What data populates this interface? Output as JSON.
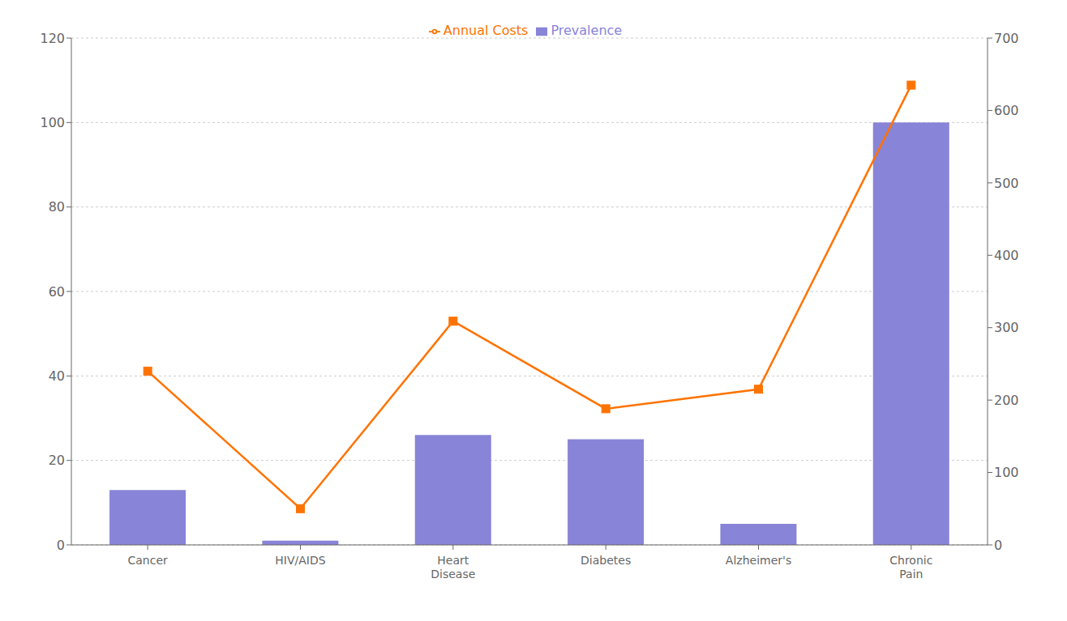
{
  "chart_data": {
    "type": "bar",
    "categories": [
      "Cancer",
      "HIV/AIDS",
      "Heart\nDisease",
      "Diabetes",
      "Alzheimer's",
      "Chronic\nPain"
    ],
    "series": [
      {
        "name": "Prevalence",
        "type": "bar",
        "color": "#8884d8",
        "values": [
          13,
          1,
          26,
          25,
          5,
          100
        ]
      },
      {
        "name": "Annual Costs",
        "type": "line",
        "axis": "y2",
        "color": "#ff7300",
        "marker": "square",
        "values": [
          240,
          50,
          309,
          188,
          215,
          635
        ]
      }
    ],
    "ylim": [
      0,
      120
    ],
    "yticks": [
      0,
      20,
      40,
      60,
      80,
      100,
      120
    ],
    "y2lim": [
      0,
      700
    ],
    "y2ticks": [
      0,
      100,
      200,
      300,
      400,
      500,
      600,
      700
    ],
    "grid": true,
    "legend": "top"
  }
}
